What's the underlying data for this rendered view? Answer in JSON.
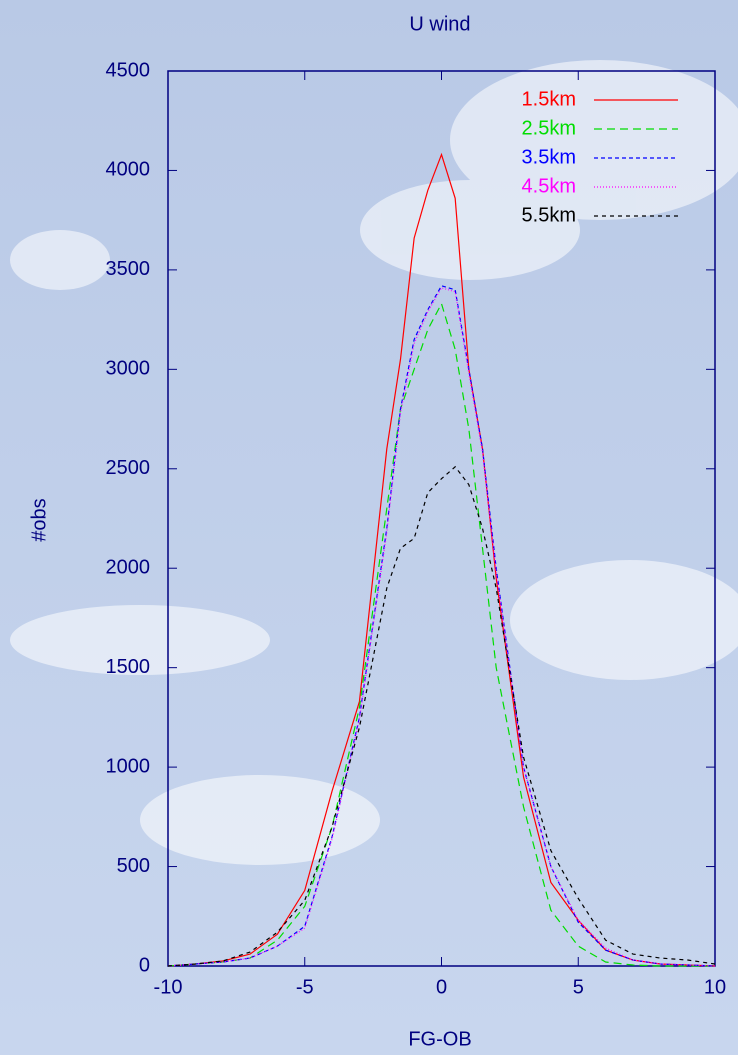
{
  "chart_data": {
    "type": "line",
    "title": "U wind",
    "xlabel": "FG-OB",
    "ylabel": "#obs",
    "x": [
      -10,
      -9,
      -8,
      -7,
      -6,
      -5,
      -4,
      -3,
      -2,
      -1.5,
      -1,
      -0.5,
      0,
      0.5,
      1,
      1.5,
      2,
      3,
      4,
      5,
      6,
      7,
      8,
      9,
      10
    ],
    "series": [
      {
        "name": "1.5km",
        "color": "#ff0000",
        "dash": "none",
        "values": [
          0,
          10,
          25,
          60,
          160,
          380,
          880,
          1330,
          2600,
          3050,
          3660,
          3900,
          4080,
          3860,
          3000,
          2600,
          1950,
          950,
          420,
          230,
          80,
          30,
          10,
          5,
          0
        ]
      },
      {
        "name": "2.5km",
        "color": "#00dd00",
        "dash": "8,5",
        "values": [
          0,
          10,
          20,
          40,
          130,
          300,
          700,
          1300,
          2300,
          2800,
          3000,
          3200,
          3330,
          3100,
          2700,
          2100,
          1500,
          800,
          280,
          100,
          20,
          5,
          0,
          0,
          0
        ]
      },
      {
        "name": "3.5km",
        "color": "#0000ff",
        "dash": "4,3",
        "values": [
          0,
          10,
          20,
          40,
          100,
          200,
          650,
          1250,
          2200,
          2800,
          3150,
          3300,
          3420,
          3400,
          3000,
          2600,
          2000,
          1000,
          500,
          220,
          80,
          30,
          10,
          5,
          0
        ]
      },
      {
        "name": "4.5km",
        "color": "#ff00ff",
        "dash": "1,2",
        "values": [
          0,
          10,
          20,
          40,
          100,
          190,
          640,
          1240,
          2180,
          2780,
          3130,
          3290,
          3410,
          3390,
          2980,
          2580,
          1980,
          1000,
          500,
          230,
          90,
          30,
          10,
          5,
          0
        ]
      },
      {
        "name": "5.5km",
        "color": "#000000",
        "dash": "4,4",
        "values": [
          0,
          10,
          25,
          70,
          170,
          330,
          700,
          1200,
          1900,
          2100,
          2150,
          2380,
          2450,
          2510,
          2420,
          2200,
          1900,
          1050,
          580,
          340,
          130,
          60,
          40,
          30,
          10
        ]
      }
    ],
    "xlim": [
      -10,
      10
    ],
    "xticks": [
      -10,
      -5,
      0,
      5,
      10
    ],
    "ylim": [
      0,
      4500
    ],
    "yticks": [
      0,
      500,
      1000,
      1500,
      2000,
      2500,
      3000,
      3500,
      4000,
      4500
    ],
    "legend": "upper right"
  }
}
